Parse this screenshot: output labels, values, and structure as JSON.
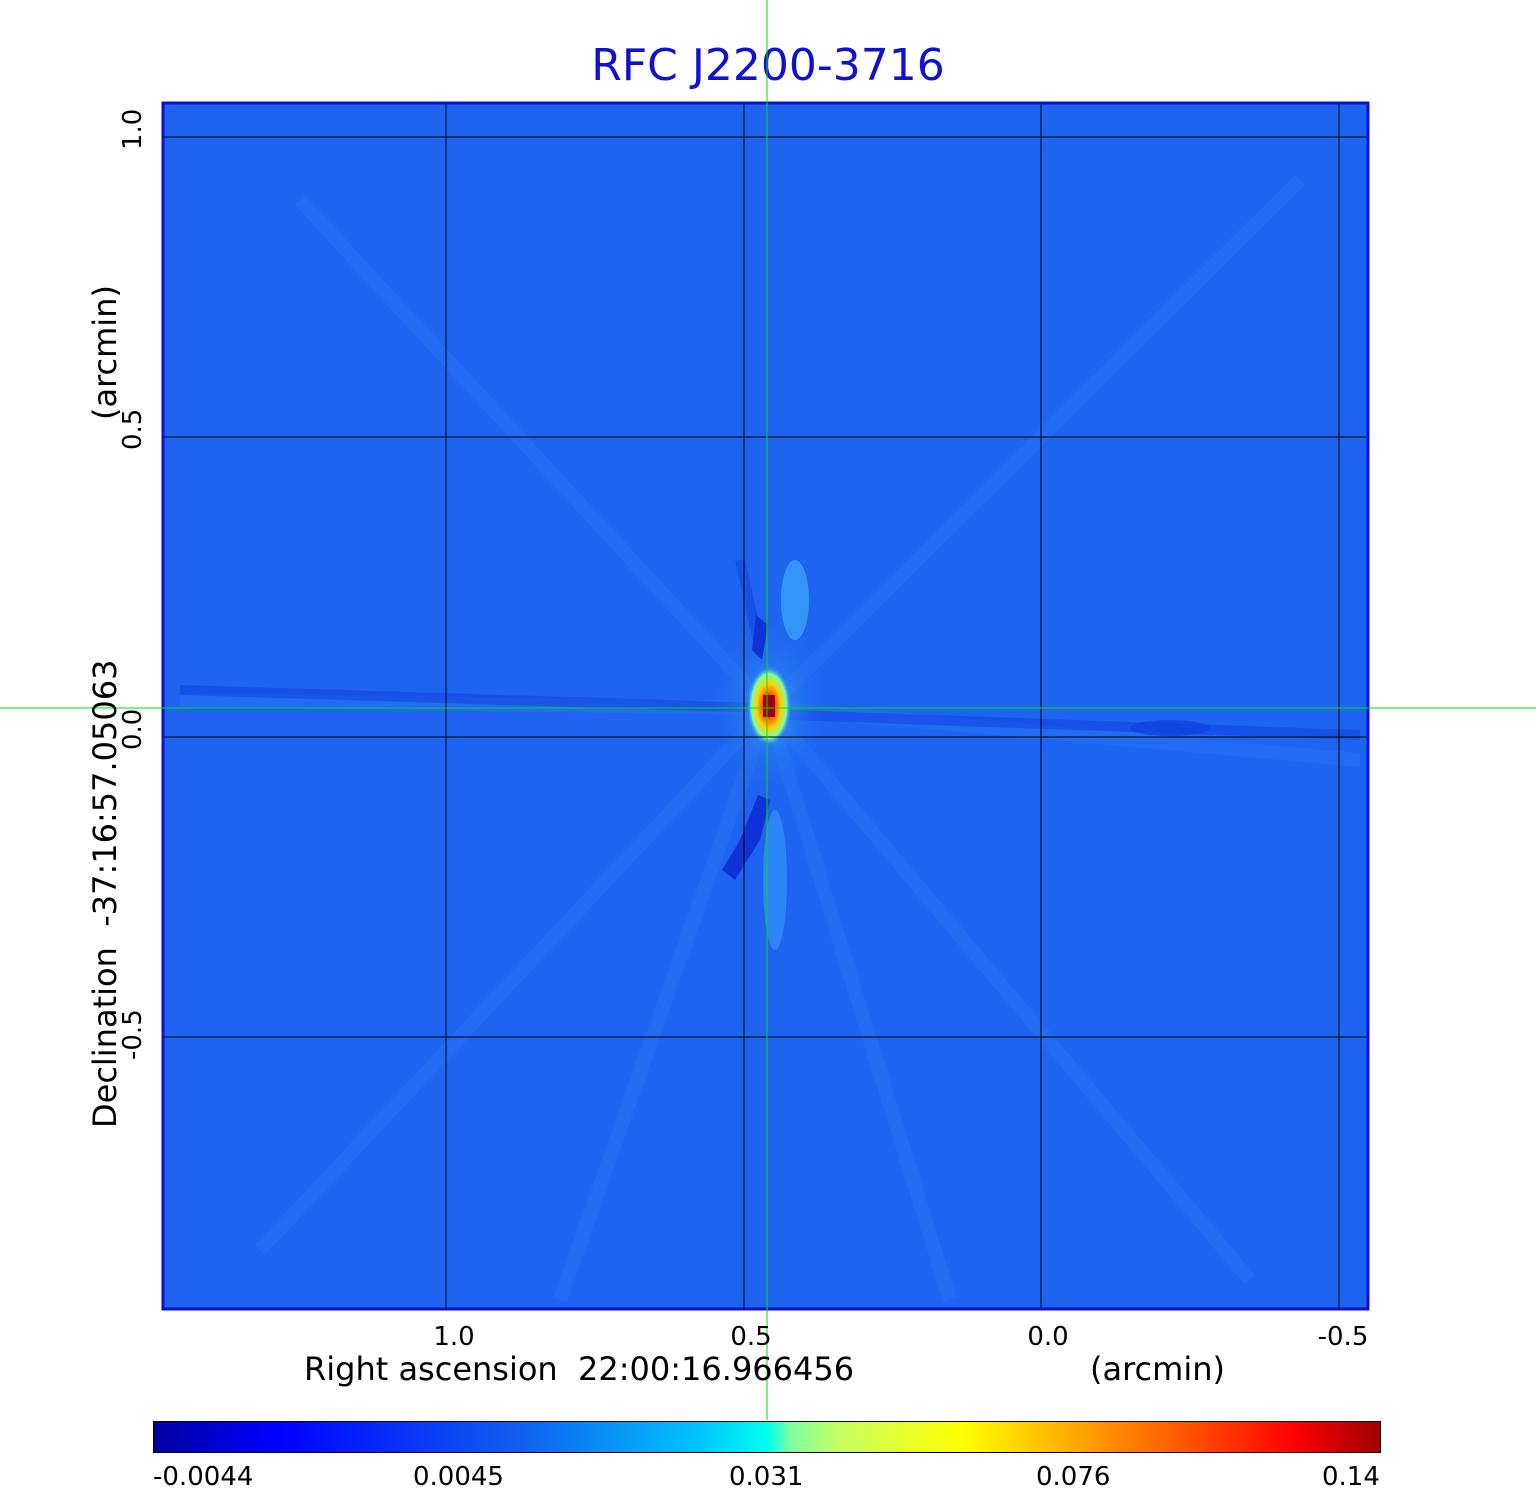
{
  "title": "RFC J2200-3716",
  "x_axis": {
    "label": "Right ascension  22:00:16.966456",
    "unit": "(arcmin)",
    "ticks": [
      "1.0",
      "0.5",
      "0.0",
      "-0.5"
    ]
  },
  "y_axis": {
    "label": "Declination  -37:16:57.05063",
    "unit": "(arcmin)",
    "ticks": [
      "1.0",
      "0.5",
      "0.0",
      "-0.5"
    ]
  },
  "colorbar": {
    "ticks": [
      "-0.0044",
      "0.0045",
      "0.031",
      "0.076",
      "0.14"
    ],
    "colormap": "jet"
  },
  "colors": {
    "title": "#1010d0",
    "frame": "#1010d0",
    "crosshair": "#00e000",
    "background_field": "#1e64f0"
  }
}
